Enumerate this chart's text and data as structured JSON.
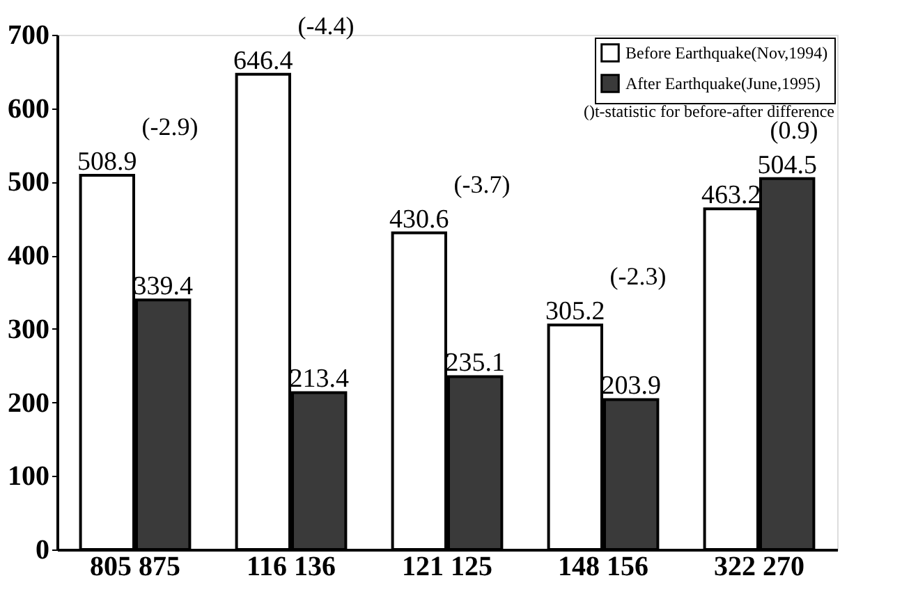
{
  "chart_data": {
    "type": "bar",
    "categories": [
      "805 875",
      "116 136",
      "121 125",
      "148 156",
      "322 270"
    ],
    "series": [
      {
        "name": "Before Earthquake(Nov,1994)",
        "color": "#ffffff",
        "values": [
          508.9,
          646.4,
          430.6,
          305.2,
          463.2
        ]
      },
      {
        "name": "After Earthquake(June,1995)",
        "color": "#3a3a3a",
        "values": [
          339.4,
          213.4,
          235.1,
          203.9,
          504.5
        ]
      }
    ],
    "ylim": [
      0,
      700
    ],
    "yticks": [
      0,
      100,
      200,
      300,
      400,
      500,
      600,
      700
    ],
    "grid": false,
    "legend": "top right",
    "data_labels": true,
    "annotations": [
      "()t-statistic for before-after difference",
      "(-2.9)",
      "(-4.4)",
      "(-3.7)",
      "(-2.3)",
      "(0.9)"
    ]
  }
}
